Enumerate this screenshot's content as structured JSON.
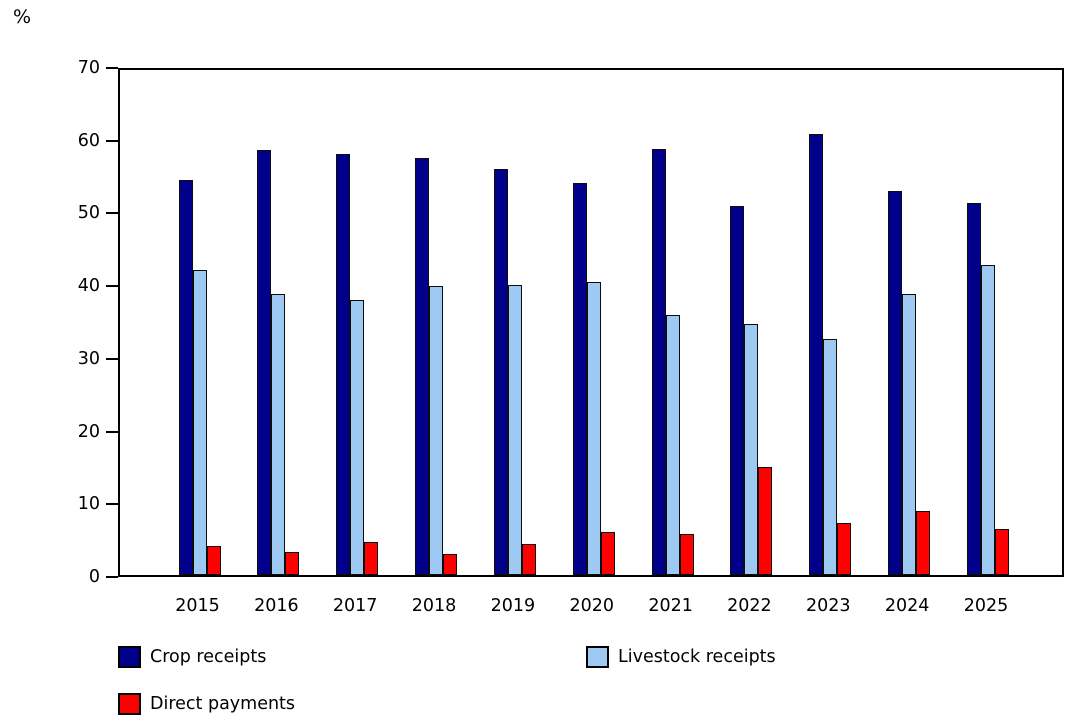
{
  "unit_label": "%",
  "chart_data": {
    "type": "bar",
    "title": "",
    "xlabel": "",
    "ylabel": "%",
    "ylim": [
      0,
      70
    ],
    "yticks": [
      0,
      10,
      20,
      30,
      40,
      50,
      60,
      70
    ],
    "grid": false,
    "legend_position": "bottom",
    "categories": [
      "2015",
      "2016",
      "2017",
      "2018",
      "2019",
      "2020",
      "2021",
      "2022",
      "2023",
      "2024",
      "2025"
    ],
    "series": [
      {
        "name": "Crop receipts",
        "color": "#00008B",
        "values": [
          54.3,
          58.5,
          57.9,
          57.4,
          55.9,
          53.9,
          58.6,
          50.8,
          60.6,
          52.8,
          51.2
        ]
      },
      {
        "name": "Livestock receipts",
        "color": "#9DC9F2",
        "values": [
          42.0,
          38.7,
          37.8,
          39.8,
          39.9,
          40.3,
          35.8,
          34.5,
          32.4,
          38.6,
          42.6
        ]
      },
      {
        "name": "Direct payments",
        "color": "#FF0000",
        "values": [
          4.0,
          3.2,
          4.6,
          2.9,
          4.3,
          5.9,
          5.7,
          14.9,
          7.1,
          8.8,
          6.3
        ]
      }
    ]
  },
  "colors": {
    "axis": "#000000",
    "bar_border": "#0d0d0d",
    "text": "#000000",
    "background": "#ffffff"
  }
}
